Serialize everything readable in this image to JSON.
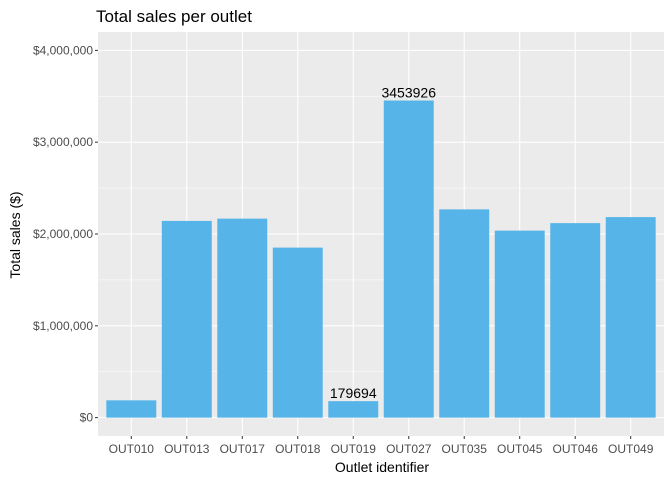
{
  "chart_data": {
    "type": "bar",
    "title": "Total sales per outlet",
    "xlabel": "Outlet identifier",
    "ylabel": "Total sales ($)",
    "categories": [
      "OUT010",
      "OUT013",
      "OUT017",
      "OUT018",
      "OUT019",
      "OUT027",
      "OUT035",
      "OUT045",
      "OUT046",
      "OUT049"
    ],
    "values": [
      188340,
      2142664,
      2167465,
      1851823,
      179694,
      3453926,
      2268123,
      2036725,
      2118395,
      2183970
    ],
    "ylim": [
      -200000,
      4200000
    ],
    "yticks": [
      0,
      1000000,
      2000000,
      3000000,
      4000000
    ],
    "ytick_labels": [
      "$0",
      "$1,000,000",
      "$2,000,000",
      "$3,000,000",
      "$4,000,000"
    ],
    "data_labels": [
      {
        "category": "OUT019",
        "text": "179694"
      },
      {
        "category": "OUT027",
        "text": "3453926"
      }
    ],
    "grid": true,
    "bar_color": "#56B4E9",
    "panel_color": "#EBEBEB",
    "grid_color": "#FFFFFF"
  }
}
